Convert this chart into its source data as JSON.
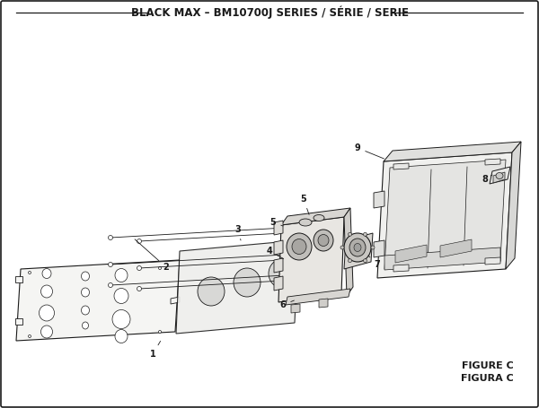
{
  "title": "BLACK MAX – BM10700J SERIES / SÉRIE / SERIE",
  "figure_label": "FIGURE C",
  "figura_label": "FIGURA C",
  "bg_color": "#ffffff",
  "border_color": "#1a1a1a",
  "fill_light": "#f0f0ee",
  "fill_mid": "#e0e0de",
  "fill_dark": "#c8c8c6",
  "title_fontsize": 8.5,
  "label_fontsize": 7,
  "fig_label_fontsize": 8
}
